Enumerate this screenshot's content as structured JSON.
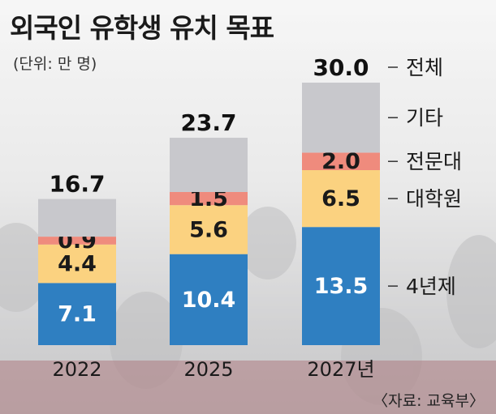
{
  "title": "외국인 유학생 유치 목표",
  "unit": "(단위: 만 명)",
  "source": "〈자료: 교육부〉",
  "chart_data": {
    "type": "bar",
    "stacked": true,
    "categories": [
      "2022",
      "2025",
      "2027년"
    ],
    "totals": [
      16.7,
      23.7,
      30.0
    ],
    "series": [
      {
        "name": "4년제",
        "values": [
          7.1,
          10.4,
          13.5
        ],
        "labels": [
          "7.1",
          "10.4",
          "13.5"
        ],
        "color": "#2f7fc1"
      },
      {
        "name": "대학원",
        "values": [
          4.4,
          5.6,
          6.5
        ],
        "labels": [
          "4.4",
          "5.6",
          "6.5"
        ],
        "color": "#fbd280"
      },
      {
        "name": "전문대",
        "values": [
          0.9,
          1.5,
          2.0
        ],
        "labels": [
          "0.9",
          "1.5",
          "2.0"
        ],
        "color": "#ef8b7d"
      },
      {
        "name": "기타",
        "values": [
          4.3,
          6.2,
          8.0
        ],
        "labels": [
          "",
          "",
          ""
        ],
        "color": "#c8c8cc"
      }
    ],
    "total_labels": [
      "16.7",
      "23.7",
      "30.0"
    ],
    "total_legend": "전체",
    "ylim": [
      0,
      30
    ]
  }
}
